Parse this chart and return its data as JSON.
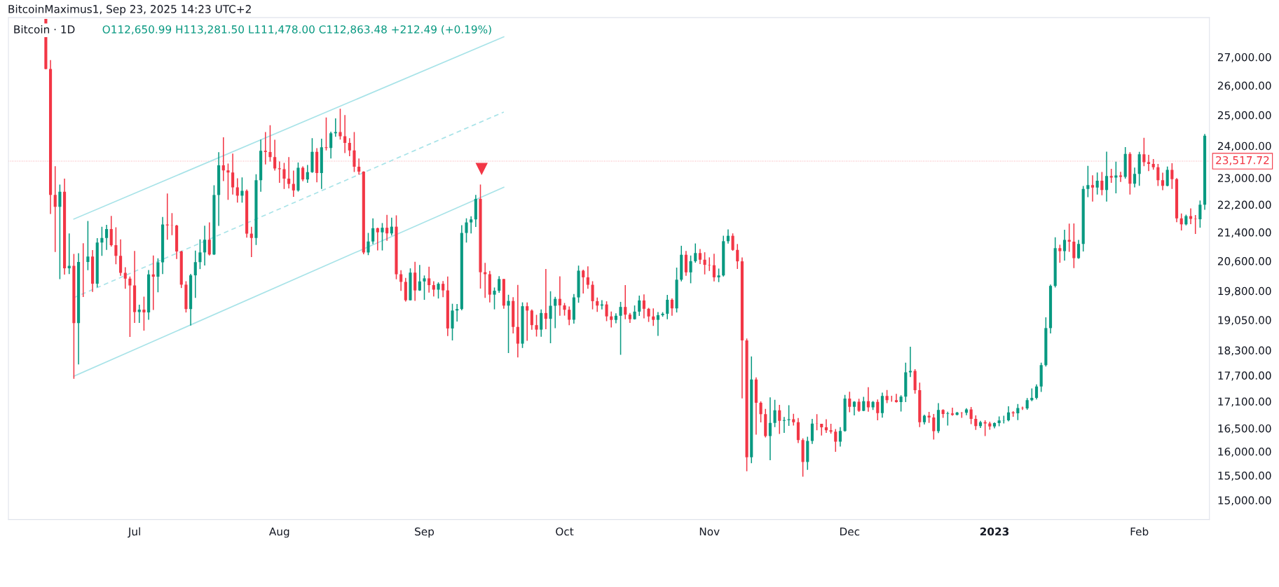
{
  "chart_data": {
    "type": "candlestick",
    "title": "Bitcoin · 1D",
    "annotations": [
      "O112,650.99 H113,281.50 L111,478.00 C112,863.48 +212.49 (+0.19%)",
      "BitcoinMaximus1, Sep 23, 2025 14:23 UTC+2"
    ],
    "colors": [
      "#f23645",
      "#f23645",
      "#f23645",
      "#089981",
      "#f23645",
      "#089981",
      "#f23645",
      "#089981",
      "#f23645",
      "#089981",
      "#f23645",
      "#089981",
      "#089981",
      "#089981",
      "#f23645",
      "#f23645",
      "#f23645",
      "#f23645",
      "#f23645",
      "#f23645",
      "#089981",
      "#f23645",
      "#089981",
      "#f23645",
      "#089981",
      "#089981",
      "#f23645",
      "#f23645",
      "#f23645",
      "#f23645",
      "#f23645",
      "#089981",
      "#089981",
      "#089981",
      "#089981",
      "#f23645",
      "#089981",
      "#089981",
      "#f23645",
      "#f23645",
      "#f23645",
      "#f23645",
      "#089981",
      "#f23645",
      "#f23645",
      "#089981",
      "#089981",
      "#f23645",
      "#f23645",
      "#f23645",
      "#f23645",
      "#f23645",
      "#f23645",
      "#f23645",
      "#089981",
      "#f23645",
      "#089981",
      "#089981",
      "#f23645",
      "#089981",
      "#f23645",
      "#089981",
      "#089981",
      "#f23645",
      "#f23645",
      "#f23645",
      "#f23645",
      "#f23645",
      "#f23645",
      "#089981",
      "#089981",
      "#f23645",
      "#089981",
      "#f23645",
      "#089981",
      "#f23645",
      "#f23645",
      "#f23645",
      "#089981",
      "#f23645",
      "#089981",
      "#089981",
      "#f23645",
      "#f23645",
      "#089981",
      "#f23645",
      "#f23645",
      "#089981",
      "#089981",
      "#089981",
      "#089981",
      "#089981",
      "#089981",
      "#f23645",
      "#f23645",
      "#f23645",
      "#089981",
      "#089981",
      "#f23645",
      "#089981",
      "#f23645",
      "#f23645",
      "#089981",
      "#f23645",
      "#f23645",
      "#f23645",
      "#089981",
      "#f23645",
      "#089981",
      "#089981",
      "#f23645",
      "#f23645",
      "#f23645",
      "#089981",
      "#089981",
      "#f23645",
      "#f23645",
      "#f23645",
      "#f23645",
      "#089981",
      "#f23645",
      "#f23645",
      "#089981",
      "#089981",
      "#f23645",
      "#f23645",
      "#089981",
      "#089981",
      "#f23645",
      "#f23645",
      "#f23645",
      "#089981",
      "#089981",
      "#089981",
      "#f23645",
      "#089981",
      "#089981",
      "#f23645",
      "#089981",
      "#089981",
      "#f23645",
      "#f23645",
      "#f23645",
      "#f23645",
      "#089981",
      "#089981",
      "#089981",
      "#f23645",
      "#f23645",
      "#f23645",
      "#f23645",
      "#089981",
      "#f23645",
      "#f23645",
      "#f23645",
      "#089981",
      "#089981",
      "#f23645",
      "#089981",
      "#089981",
      "#f23645",
      "#f23645",
      "#f23645",
      "#089981",
      "#089981",
      "#f23645",
      "#f23645",
      "#f23645",
      "#f23645",
      "#f23645",
      "#089981",
      "#089981",
      "#f23645",
      "#089981",
      "#f23645",
      "#089981",
      "#f23645",
      "#089981",
      "#f23645",
      "#089981",
      "#f23645",
      "#f23645",
      "#f23645",
      "#089981",
      "#089981",
      "#089981",
      "#f23645",
      "#f23645",
      "#089981",
      "#f23645",
      "#f23645",
      "#089981",
      "#f23645",
      "#089981",
      "#f23645",
      "#089981",
      "#f23645",
      "#089981",
      "#f23645",
      "#f23645",
      "#089981",
      "#f23645",
      "#f23645",
      "#089981",
      "#089981",
      "#089981",
      "#089981",
      "#f23645",
      "#089981",
      "#f23645",
      "#089981",
      "#089981",
      "#089981",
      "#089981",
      "#089981",
      "#089981",
      "#089981",
      "#f23645",
      "#089981",
      "#f23645",
      "#f23645",
      "#089981",
      "#089981",
      "#089981",
      "#f23645",
      "#089981",
      "#f23645",
      "#089981",
      "#f23645",
      "#089981",
      "#f23645",
      "#089981",
      "#f23645",
      "#089981",
      "#089981",
      "#f23645",
      "#f23645",
      "#f23645",
      "#f23645",
      "#f23645",
      "#089981",
      "#f23645",
      "#f23645",
      "#f23645",
      "#089981",
      "#f23645",
      "#f23645",
      "#089981",
      "#089981"
    ],
    "x": [
      "2022-06-12",
      "2022-06-13",
      "2022-06-14",
      "2022-06-15",
      "2022-06-16",
      "2022-06-17",
      "2022-06-18",
      "2022-06-19",
      "2022-06-20",
      "2022-06-21",
      "2022-06-22",
      "2022-06-23",
      "2022-06-24",
      "2022-06-25",
      "2022-06-26",
      "2022-06-27",
      "2022-06-28",
      "2022-06-29",
      "2022-06-30",
      "2022-07-01",
      "2022-07-02",
      "2022-07-03",
      "2022-07-04",
      "2022-07-05",
      "2022-07-06",
      "2022-07-07",
      "2022-07-08",
      "2022-07-09",
      "2022-07-10",
      "2022-07-11",
      "2022-07-12",
      "2022-07-13",
      "2022-07-14",
      "2022-07-15",
      "2022-07-16",
      "2022-07-17",
      "2022-07-18",
      "2022-07-19",
      "2022-07-20",
      "2022-07-21",
      "2022-07-22",
      "2022-07-23",
      "2022-07-24",
      "2022-07-25",
      "2022-07-26",
      "2022-07-27",
      "2022-07-28",
      "2022-07-29",
      "2022-07-30",
      "2022-07-31",
      "2022-08-01",
      "2022-08-02",
      "2022-08-03",
      "2022-08-04",
      "2022-08-05",
      "2022-08-06",
      "2022-08-07",
      "2022-08-08",
      "2022-08-09",
      "2022-08-10",
      "2022-08-11",
      "2022-08-12",
      "2022-08-13",
      "2022-08-14",
      "2022-08-15",
      "2022-08-16",
      "2022-08-17",
      "2022-08-18",
      "2022-08-19",
      "2022-08-20",
      "2022-08-21",
      "2022-08-22",
      "2022-08-23",
      "2022-08-24",
      "2022-08-25",
      "2022-08-26",
      "2022-08-27",
      "2022-08-28",
      "2022-08-29",
      "2022-08-30",
      "2022-08-31",
      "2022-09-01",
      "2022-09-02",
      "2022-09-03",
      "2022-09-04",
      "2022-09-05",
      "2022-09-06",
      "2022-09-07",
      "2022-09-08",
      "2022-09-09",
      "2022-09-10",
      "2022-09-11",
      "2022-09-12",
      "2022-09-13",
      "2022-09-14",
      "2022-09-15",
      "2022-09-16",
      "2022-09-17",
      "2022-09-18",
      "2022-09-19",
      "2022-09-20",
      "2022-09-21",
      "2022-09-22",
      "2022-09-23",
      "2022-09-24",
      "2022-09-25",
      "2022-09-26",
      "2022-09-27",
      "2022-09-28",
      "2022-09-29",
      "2022-09-30",
      "2022-10-01",
      "2022-10-02",
      "2022-10-03",
      "2022-10-04",
      "2022-10-05",
      "2022-10-06",
      "2022-10-07",
      "2022-10-08",
      "2022-10-09",
      "2022-10-10",
      "2022-10-11",
      "2022-10-12",
      "2022-10-13",
      "2022-10-14",
      "2022-10-15",
      "2022-10-16",
      "2022-10-17",
      "2022-10-18",
      "2022-10-19",
      "2022-10-20",
      "2022-10-21",
      "2022-10-22",
      "2022-10-23",
      "2022-10-24",
      "2022-10-25",
      "2022-10-26",
      "2022-10-27",
      "2022-10-28",
      "2022-10-29",
      "2022-10-30",
      "2022-10-31",
      "2022-11-01",
      "2022-11-02",
      "2022-11-03",
      "2022-11-04",
      "2022-11-05",
      "2022-11-06",
      "2022-11-07",
      "2022-11-08",
      "2022-11-09",
      "2022-11-10",
      "2022-11-11",
      "2022-11-12",
      "2022-11-13",
      "2022-11-14",
      "2022-11-15",
      "2022-11-16",
      "2022-11-17",
      "2022-11-18",
      "2022-11-19",
      "2022-11-20",
      "2022-11-21",
      "2022-11-22",
      "2022-11-23",
      "2022-11-24",
      "2022-11-25",
      "2022-11-26",
      "2022-11-27",
      "2022-11-28",
      "2022-11-29",
      "2022-11-30",
      "2022-12-01",
      "2022-12-02",
      "2022-12-03",
      "2022-12-04",
      "2022-12-05",
      "2022-12-06",
      "2022-12-07",
      "2022-12-08",
      "2022-12-09",
      "2022-12-10",
      "2022-12-11",
      "2022-12-12",
      "2022-12-13",
      "2022-12-14",
      "2022-12-15",
      "2022-12-16",
      "2022-12-17",
      "2022-12-18",
      "2022-12-19",
      "2022-12-20",
      "2022-12-21",
      "2022-12-22",
      "2022-12-23",
      "2022-12-24",
      "2022-12-25",
      "2022-12-26",
      "2022-12-27",
      "2022-12-28",
      "2022-12-29",
      "2022-12-30",
      "2022-12-31",
      "2023-01-01",
      "2023-01-02",
      "2023-01-03",
      "2023-01-04",
      "2023-01-05",
      "2023-01-06",
      "2023-01-07",
      "2023-01-08",
      "2023-01-09",
      "2023-01-10",
      "2023-01-11",
      "2023-01-12",
      "2023-01-13",
      "2023-01-14",
      "2023-01-15",
      "2023-01-16",
      "2023-01-17",
      "2023-01-18",
      "2023-01-19",
      "2023-01-20",
      "2023-01-21",
      "2023-01-22",
      "2023-01-23",
      "2023-01-24",
      "2023-01-25",
      "2023-01-26",
      "2023-01-27",
      "2023-01-28",
      "2023-01-29",
      "2023-01-30",
      "2023-01-31",
      "2023-02-01",
      "2023-02-02",
      "2023-02-03",
      "2023-02-04",
      "2023-02-05",
      "2023-02-06",
      "2023-02-07",
      "2023-02-08",
      "2023-02-09",
      "2023-02-10",
      "2023-02-11",
      "2023-02-12",
      "2023-02-13",
      "2023-02-14",
      "2023-02-15"
    ],
    "ohlc": [
      [
        28400,
        28400,
        26560,
        26574
      ],
      [
        26574,
        26895,
        21925,
        22487
      ],
      [
        22485,
        23362,
        20846,
        22136
      ],
      [
        22136,
        22800,
        20111,
        22583
      ],
      [
        22583,
        22980,
        20232,
        20401
      ],
      [
        20401,
        21365,
        20246,
        20468
      ],
      [
        20468,
        20792,
        17622,
        18970
      ],
      [
        18970,
        20815,
        17960,
        20574
      ],
      [
        20574,
        21090,
        19637,
        20573
      ],
      [
        20573,
        21723,
        20348,
        20723
      ],
      [
        20723,
        20900,
        19770,
        19987
      ],
      [
        19988,
        21233,
        19890,
        21110
      ],
      [
        21110,
        21558,
        20740,
        21237
      ],
      [
        21237,
        21614,
        20906,
        21492
      ],
      [
        21492,
        21868,
        21000,
        21038
      ],
      [
        21038,
        21540,
        20510,
        20742
      ],
      [
        20742,
        21200,
        20200,
        20281
      ],
      [
        20281,
        20432,
        19854,
        20123
      ],
      [
        20123,
        20179,
        18626,
        19943
      ],
      [
        19943,
        20876,
        18975,
        19252
      ],
      [
        19252,
        19441,
        18975,
        19315
      ],
      [
        19315,
        19648,
        18781,
        19243
      ],
      [
        19243,
        20354,
        19055,
        20236
      ],
      [
        20236,
        20750,
        19304,
        20175
      ],
      [
        20175,
        20675,
        19762,
        20564
      ],
      [
        20564,
        21838,
        20245,
        21624
      ],
      [
        21624,
        22527,
        21189,
        21595
      ],
      [
        21595,
        21950,
        21320,
        21591
      ],
      [
        21591,
        21612,
        20655,
        20862
      ],
      [
        20862,
        20882,
        19875,
        19963
      ],
      [
        19963,
        20055,
        19240,
        19328
      ],
      [
        19328,
        20250,
        18910,
        20212
      ],
      [
        20212,
        20888,
        19616,
        20569
      ],
      [
        20569,
        21200,
        20380,
        20836
      ],
      [
        20836,
        21588,
        20478,
        21190
      ],
      [
        21190,
        21683,
        20750,
        20779
      ],
      [
        20779,
        22777,
        20764,
        22485
      ],
      [
        22485,
        23800,
        21581,
        23389
      ],
      [
        23389,
        24276,
        22906,
        23231
      ],
      [
        23231,
        23440,
        22341,
        23164
      ],
      [
        23164,
        23757,
        22500,
        22714
      ],
      [
        22714,
        22990,
        22257,
        22465
      ],
      [
        22465,
        23014,
        22258,
        22609
      ],
      [
        22609,
        22649,
        21250,
        21361
      ],
      [
        21361,
        21558,
        20706,
        21239
      ],
      [
        21239,
        23112,
        21042,
        22930
      ],
      [
        22930,
        24199,
        22582,
        23843
      ],
      [
        23843,
        24442,
        23414,
        23804
      ],
      [
        23804,
        24668,
        23500,
        23643
      ],
      [
        23643,
        24194,
        23228,
        23293
      ],
      [
        23296,
        23509,
        22850,
        23268
      ],
      [
        23268,
        23466,
        22665,
        22978
      ],
      [
        22978,
        23647,
        22683,
        22818
      ],
      [
        22818,
        23223,
        22430,
        22622
      ],
      [
        22622,
        23475,
        22586,
        23312
      ],
      [
        23313,
        23354,
        22900,
        22954
      ],
      [
        22954,
        23400,
        22850,
        23175
      ],
      [
        23175,
        24245,
        23154,
        23810
      ],
      [
        23810,
        23925,
        22865,
        23149
      ],
      [
        23150,
        24226,
        22664,
        23954
      ],
      [
        23954,
        24918,
        23853,
        23934
      ],
      [
        23934,
        24456,
        23600,
        24403
      ],
      [
        24403,
        24888,
        24292,
        24441
      ],
      [
        24441,
        25211,
        24200,
        24305
      ],
      [
        24305,
        25000,
        23773,
        24094
      ],
      [
        24094,
        24247,
        23671,
        23854
      ],
      [
        23854,
        24446,
        23180,
        23342
      ],
      [
        23342,
        23600,
        23100,
        23191
      ],
      [
        23191,
        23203,
        20783,
        20834
      ],
      [
        20834,
        21382,
        20761,
        21140
      ],
      [
        21140,
        21800,
        21068,
        21516
      ],
      [
        21516,
        21530,
        20890,
        21399
      ],
      [
        21399,
        21664,
        20890,
        21529
      ],
      [
        21529,
        21900,
        21159,
        21368
      ],
      [
        21368,
        21819,
        21310,
        21559
      ],
      [
        21559,
        21886,
        20107,
        20241
      ],
      [
        20241,
        20350,
        19800,
        20037
      ],
      [
        20037,
        20142,
        19520,
        19555
      ],
      [
        19555,
        20400,
        19550,
        20285
      ],
      [
        20285,
        20580,
        19540,
        19811
      ],
      [
        19811,
        20490,
        19799,
        20050
      ],
      [
        20050,
        20208,
        19565,
        20131
      ],
      [
        20131,
        20445,
        19754,
        19951
      ],
      [
        19951,
        20054,
        19655,
        19832
      ],
      [
        19832,
        20025,
        19600,
        19986
      ],
      [
        19986,
        20058,
        19635,
        19812
      ],
      [
        19812,
        20180,
        18649,
        18837
      ],
      [
        18837,
        19464,
        18540,
        19290
      ],
      [
        19290,
        19457,
        19011,
        19329
      ],
      [
        19329,
        21600,
        19297,
        21381
      ],
      [
        21381,
        21800,
        21110,
        21681
      ],
      [
        21681,
        21860,
        21367,
        21769
      ],
      [
        21769,
        22488,
        21550,
        22370
      ],
      [
        22370,
        22799,
        19860,
        20296
      ],
      [
        20296,
        20549,
        19617,
        20242
      ],
      [
        20242,
        20330,
        19497,
        19701
      ],
      [
        19701,
        19888,
        19320,
        19803
      ],
      [
        19803,
        20189,
        19748,
        20113
      ],
      [
        20113,
        20115,
        19338,
        19416
      ],
      [
        19416,
        19698,
        18232,
        19537
      ],
      [
        19537,
        19635,
        18711,
        18875
      ],
      [
        18875,
        19956,
        18125,
        18461
      ],
      [
        18461,
        19500,
        18355,
        19401
      ],
      [
        19401,
        19500,
        18531,
        19289
      ],
      [
        19289,
        19316,
        18805,
        18920
      ],
      [
        18920,
        19180,
        18636,
        18807
      ],
      [
        18807,
        19316,
        18630,
        19227
      ],
      [
        19227,
        20385,
        18816,
        19079
      ],
      [
        19079,
        19790,
        18471,
        19412
      ],
      [
        19412,
        19645,
        18843,
        19591
      ],
      [
        19591,
        20185,
        19155,
        19422
      ],
      [
        19422,
        19484,
        19160,
        19310
      ],
      [
        19310,
        19395,
        18920,
        19056
      ],
      [
        19056,
        19719,
        18959,
        19629
      ],
      [
        19629,
        20475,
        19490,
        20337
      ],
      [
        20337,
        20365,
        19730,
        20159
      ],
      [
        20159,
        20456,
        19853,
        19960
      ],
      [
        19960,
        20055,
        19320,
        19531
      ],
      [
        19531,
        19627,
        19255,
        19417
      ],
      [
        19417,
        19558,
        19316,
        19446
      ],
      [
        19446,
        19528,
        19020,
        19141
      ],
      [
        19141,
        19266,
        18860,
        19051
      ],
      [
        19051,
        19221,
        18965,
        19157
      ],
      [
        19157,
        19513,
        18190,
        19382
      ],
      [
        19382,
        19951,
        19070,
        19185
      ],
      [
        19185,
        19227,
        18975,
        19069
      ],
      [
        19069,
        19420,
        19060,
        19262
      ],
      [
        19262,
        19676,
        19152,
        19550
      ],
      [
        19550,
        19706,
        19091,
        19334
      ],
      [
        19334,
        19358,
        19000,
        19139
      ],
      [
        19139,
        19347,
        18900,
        19053
      ],
      [
        19053,
        19250,
        18650,
        19172
      ],
      [
        19172,
        19248,
        19132,
        19208
      ],
      [
        19208,
        19695,
        19068,
        19567
      ],
      [
        19567,
        19601,
        19157,
        19345
      ],
      [
        19345,
        20420,
        19240,
        20095
      ],
      [
        20095,
        21020,
        20050,
        20771
      ],
      [
        20771,
        20875,
        20200,
        20292
      ],
      [
        20292,
        20750,
        20000,
        20595
      ],
      [
        20595,
        21085,
        20554,
        20818
      ],
      [
        20818,
        20930,
        20515,
        20635
      ],
      [
        20635,
        20840,
        20237,
        20495
      ],
      [
        20495,
        20700,
        20330,
        20485
      ],
      [
        20485,
        20800,
        20050,
        20159
      ],
      [
        20159,
        20394,
        20031,
        20209
      ],
      [
        20209,
        21302,
        20180,
        21148
      ],
      [
        21148,
        21480,
        21080,
        21300
      ],
      [
        21300,
        21369,
        20880,
        20905
      ],
      [
        20905,
        21069,
        20384,
        20591
      ],
      [
        20591,
        20700,
        17166,
        18541
      ],
      [
        18541,
        18587,
        15588,
        15880
      ],
      [
        15880,
        18150,
        15754,
        17602
      ],
      [
        17602,
        17655,
        16361,
        17070
      ],
      [
        17070,
        17099,
        16631,
        16812
      ],
      [
        16812,
        16930,
        16300,
        16330
      ],
      [
        16330,
        17190,
        15815,
        16619
      ],
      [
        16619,
        17134,
        16527,
        16900
      ],
      [
        16900,
        17020,
        16378,
        16663
      ],
      [
        16663,
        16751,
        16401,
        16682
      ],
      [
        16682,
        17011,
        16551,
        16698
      ],
      [
        16698,
        16820,
        16560,
        16634
      ],
      [
        16634,
        16725,
        16179,
        16246
      ],
      [
        16246,
        16283,
        15476,
        15781
      ],
      [
        15781,
        16315,
        15616,
        16226
      ],
      [
        16226,
        16706,
        16160,
        16603
      ],
      [
        16603,
        16812,
        16458,
        16598
      ],
      [
        16598,
        16600,
        16342,
        16522
      ],
      [
        16522,
        16701,
        16400,
        16458
      ],
      [
        16458,
        16600,
        16385,
        16428
      ],
      [
        16428,
        16485,
        15995,
        16212
      ],
      [
        16212,
        16525,
        16104,
        16442
      ],
      [
        16442,
        17249,
        16428,
        17163
      ],
      [
        17165,
        17321,
        16855,
        16978
      ],
      [
        16978,
        17105,
        16787,
        17092
      ],
      [
        17092,
        17159,
        16865,
        16885
      ],
      [
        16885,
        17202,
        16878,
        17105
      ],
      [
        17105,
        17424,
        16867,
        16967
      ],
      [
        16967,
        17107,
        16907,
        17089
      ],
      [
        17089,
        17142,
        16678,
        16836
      ],
      [
        16836,
        17299,
        16733,
        17224
      ],
      [
        17224,
        17360,
        17060,
        17129
      ],
      [
        17129,
        17227,
        17092,
        17127
      ],
      [
        17127,
        17270,
        17071,
        17085
      ],
      [
        17085,
        17241,
        16873,
        17209
      ],
      [
        17209,
        18000,
        17084,
        17774
      ],
      [
        17774,
        18387,
        17660,
        17804
      ],
      [
        17804,
        17846,
        17275,
        17357
      ],
      [
        17357,
        17530,
        16527,
        16633
      ],
      [
        16633,
        16800,
        16585,
        16777
      ],
      [
        16777,
        16863,
        16620,
        16739
      ],
      [
        16739,
        16815,
        16256,
        16439
      ],
      [
        16439,
        17061,
        16397,
        16907
      ],
      [
        16907,
        16923,
        16729,
        16818
      ],
      [
        16818,
        16866,
        16560,
        16830
      ],
      [
        16830,
        16959,
        16777,
        16796
      ],
      [
        16796,
        16864,
        16784,
        16847
      ],
      [
        16847,
        16860,
        16730,
        16842
      ],
      [
        16842,
        16944,
        16791,
        16920
      ],
      [
        16920,
        16972,
        16592,
        16707
      ],
      [
        16707,
        16785,
        16465,
        16548
      ],
      [
        16548,
        16664,
        16508,
        16633
      ],
      [
        16633,
        16677,
        16333,
        16607
      ],
      [
        16607,
        16644,
        16470,
        16542
      ],
      [
        16542,
        16630,
        16499,
        16616
      ],
      [
        16616,
        16760,
        16545,
        16672
      ],
      [
        16672,
        16778,
        16605,
        16675
      ],
      [
        16675,
        16991,
        16652,
        16850
      ],
      [
        16850,
        16879,
        16753,
        16831
      ],
      [
        16831,
        17041,
        16679,
        16950
      ],
      [
        16950,
        16981,
        16908,
        16943
      ],
      [
        16943,
        17176,
        16911,
        17127
      ],
      [
        17127,
        17398,
        17105,
        17178
      ],
      [
        17178,
        17490,
        17142,
        17440
      ],
      [
        17440,
        18000,
        17315,
        17943
      ],
      [
        17943,
        19117,
        17910,
        18846
      ],
      [
        18846,
        19966,
        18714,
        19930
      ],
      [
        19930,
        21258,
        19889,
        20954
      ],
      [
        20954,
        21050,
        20551,
        20871
      ],
      [
        20871,
        21474,
        20611,
        21185
      ],
      [
        21185,
        21647,
        20850,
        21134
      ],
      [
        21134,
        21650,
        20407,
        20677
      ],
      [
        20677,
        21186,
        20659,
        21071
      ],
      [
        21071,
        22755,
        20861,
        22667
      ],
      [
        22667,
        23371,
        22422,
        22783
      ],
      [
        22783,
        23078,
        22292,
        22707
      ],
      [
        22707,
        23166,
        22500,
        22916
      ],
      [
        22916,
        23180,
        22477,
        22632
      ],
      [
        22632,
        23816,
        22292,
        23060
      ],
      [
        23060,
        23282,
        22850,
        23009
      ],
      [
        23009,
        23500,
        22534,
        23074
      ],
      [
        23074,
        23189,
        22878,
        23031
      ],
      [
        23031,
        23960,
        22978,
        23743
      ],
      [
        23743,
        23800,
        22500,
        22826
      ],
      [
        22826,
        23320,
        22714,
        23125
      ],
      [
        23125,
        23812,
        22760,
        23732
      ],
      [
        23732,
        24255,
        23363,
        23488
      ],
      [
        23488,
        23715,
        23207,
        23431
      ],
      [
        23431,
        23587,
        23253,
        23326
      ],
      [
        23326,
        23433,
        22757,
        22932
      ],
      [
        22932,
        23162,
        22628,
        22762
      ],
      [
        22762,
        23350,
        22745,
        23249
      ],
      [
        23249,
        23452,
        22665,
        22963
      ],
      [
        22963,
        22994,
        21688,
        21797
      ],
      [
        21797,
        21939,
        21451,
        21626
      ],
      [
        21626,
        21906,
        21599,
        21862
      ],
      [
        21862,
        22090,
        21630,
        21783
      ],
      [
        21783,
        21894,
        21352,
        21773
      ],
      [
        21773,
        22319,
        21532,
        22199
      ],
      [
        22199,
        24380,
        22047,
        24324
      ]
    ],
    "series": [
      {
        "type": "line",
        "color": "#a8e3e8",
        "line_style": "solid",
        "x": [
          "2022-06-18",
          "2022-09-18"
        ],
        "values": [
          21778,
          27734
        ]
      },
      {
        "type": "line",
        "color": "#a8e3e8",
        "line_style": "dashed",
        "x": [
          "2022-06-18",
          "2022-09-18"
        ],
        "values": [
          19622,
          25100
        ]
      },
      {
        "type": "line",
        "color": "#a8e3e8",
        "line_style": "solid",
        "x": [
          "2022-06-18",
          "2022-09-18"
        ],
        "values": [
          17680,
          22716
        ]
      }
    ],
    "ref_lines": [
      {
        "axis": "y",
        "value": 23517.72,
        "label": "23,517.72",
        "color": "#f23645",
        "line_style": "dotted"
      }
    ],
    "log": "y",
    "grid": false,
    "xlim": [
      "2022-06-04",
      "2023-02-16"
    ],
    "xticks": [
      {
        "value": "2022-07-01",
        "label": "Jul"
      },
      {
        "value": "2022-08-01",
        "label": "Aug"
      },
      {
        "value": "2022-09-01",
        "label": "Sep"
      },
      {
        "value": "2022-10-01",
        "label": "Oct"
      },
      {
        "value": "2022-11-01",
        "label": "Nov"
      },
      {
        "value": "2022-12-01",
        "label": "Dec"
      },
      {
        "value": "2023-01-01",
        "label": "2023"
      },
      {
        "value": "2023-02-01",
        "label": "Feb"
      }
    ],
    "ylim": [
      14620,
      28450
    ],
    "yticks": [
      {
        "value": 15000,
        "label": "15,000.00"
      },
      {
        "value": 15500,
        "label": "15,500.00"
      },
      {
        "value": 16000,
        "label": "16,000.00"
      },
      {
        "value": 16500,
        "label": "16,500.00"
      },
      {
        "value": 17100,
        "label": "17,100.00"
      },
      {
        "value": 17700,
        "label": "17,700.00"
      },
      {
        "value": 18300,
        "label": "18,300.00"
      },
      {
        "value": 19050,
        "label": "19,050.00"
      },
      {
        "value": 19800,
        "label": "19,800.00"
      },
      {
        "value": 20600,
        "label": "20,600.00"
      },
      {
        "value": 21400,
        "label": "21,400.00"
      },
      {
        "value": 22200,
        "label": "22,200.00"
      },
      {
        "value": 23000,
        "label": "23,000.00"
      },
      {
        "value": 24000,
        "label": "24,000.00"
      },
      {
        "value": 25000,
        "label": "25,000.00"
      },
      {
        "value": 26000,
        "label": "26,000.00"
      },
      {
        "value": 27000,
        "label": "27,000.00"
      }
    ]
  }
}
